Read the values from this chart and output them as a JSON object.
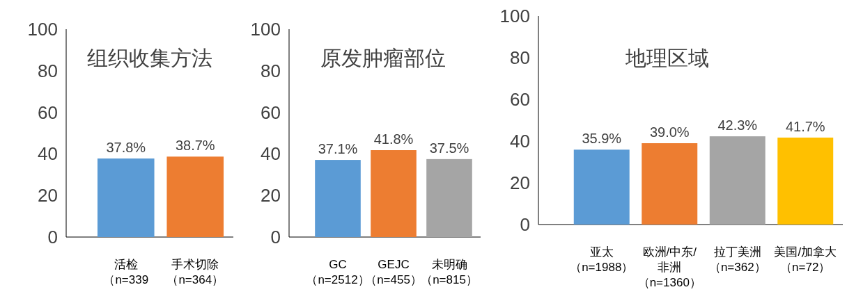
{
  "chart_data": [
    {
      "type": "bar",
      "title": "组织收集方法",
      "categories": [
        "活检（n=339",
        "手术切除（n=364）"
      ],
      "values": [
        37.8,
        38.7
      ],
      "colors": [
        "#5b9bd5",
        "#ed7d31"
      ],
      "value_labels": [
        "37.8%",
        "38.7%"
      ],
      "ylim": [
        0,
        100
      ],
      "yticks": [
        0,
        20,
        40,
        60,
        80,
        100
      ]
    },
    {
      "type": "bar",
      "title": "原发肿瘤部位",
      "categories": [
        "GC（n=2512）",
        "GEJC（n=455）",
        "未明确（n=815）"
      ],
      "values": [
        37.1,
        41.8,
        37.5
      ],
      "colors": [
        "#5b9bd5",
        "#ed7d31",
        "#a5a5a5"
      ],
      "value_labels": [
        "37.1%",
        "41.8%",
        "37.5%"
      ],
      "ylim": [
        0,
        100
      ],
      "yticks": [
        0,
        20,
        40,
        60,
        80,
        100
      ]
    },
    {
      "type": "bar",
      "title": "地理区域",
      "categories": [
        "亚太（n=1988）",
        "欧洲/中东/非洲（n=1360）",
        "拉丁美洲（n=362）",
        "美国/加拿大（n=72）"
      ],
      "values": [
        35.9,
        39.0,
        42.3,
        41.7
      ],
      "colors": [
        "#5b9bd5",
        "#ed7d31",
        "#a5a5a5",
        "#ffc000"
      ],
      "value_labels": [
        "35.9%",
        "39.0%",
        "42.3%",
        "41.7%"
      ],
      "ylim": [
        0,
        100
      ],
      "yticks": [
        0,
        20,
        40,
        60,
        80,
        100
      ]
    }
  ]
}
